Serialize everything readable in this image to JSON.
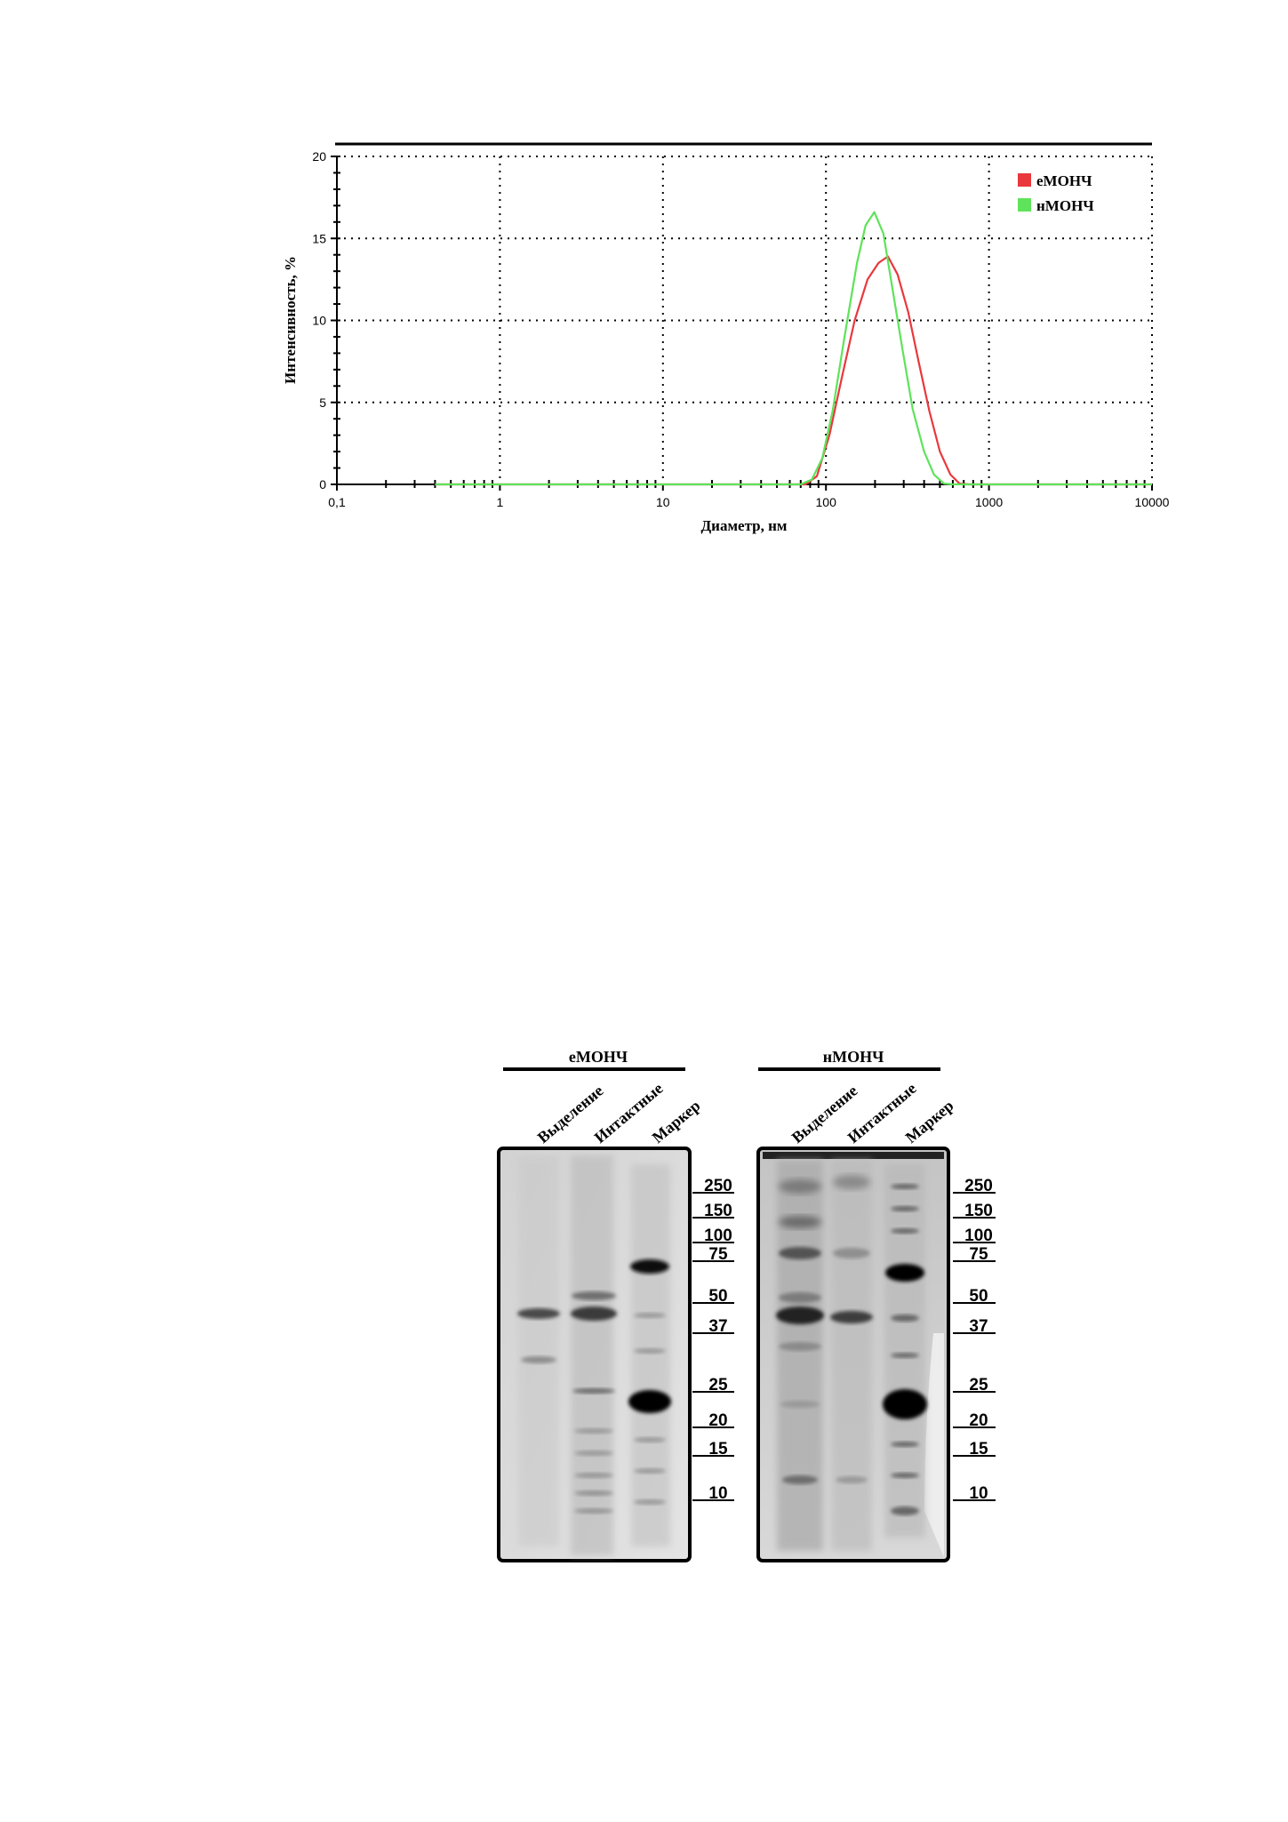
{
  "chart_data": {
    "type": "line",
    "x_scale": "log",
    "xlim": [
      0.1,
      10000
    ],
    "ylim": [
      0,
      20
    ],
    "xlabel": "Диаметр, нм",
    "ylabel": "Интенсивность, %",
    "x_ticks": [
      "0,1",
      "1",
      "10",
      "100",
      "1000",
      "10000"
    ],
    "y_ticks": [
      "0",
      "5",
      "10",
      "15",
      "20"
    ],
    "grid": true,
    "legend_position": "top-right",
    "series": [
      {
        "name": "еМОНЧ",
        "color": "#e8383d",
        "points": [
          [
            0.4,
            0
          ],
          [
            75,
            0
          ],
          [
            88,
            0.5
          ],
          [
            105,
            3.0
          ],
          [
            125,
            6.5
          ],
          [
            150,
            10.0
          ],
          [
            180,
            12.5
          ],
          [
            210,
            13.5
          ],
          [
            240,
            13.9
          ],
          [
            275,
            12.8
          ],
          [
            320,
            10.5
          ],
          [
            370,
            7.5
          ],
          [
            430,
            4.5
          ],
          [
            500,
            2.0
          ],
          [
            580,
            0.6
          ],
          [
            660,
            0.05
          ],
          [
            750,
            0
          ],
          [
            10000,
            0
          ]
        ]
      },
      {
        "name": "нМОНЧ",
        "color": "#5ee35a",
        "points": [
          [
            0.4,
            0
          ],
          [
            70,
            0
          ],
          [
            82,
            0.3
          ],
          [
            95,
            1.6
          ],
          [
            110,
            4.5
          ],
          [
            130,
            9.0
          ],
          [
            155,
            13.5
          ],
          [
            175,
            15.8
          ],
          [
            198,
            16.6
          ],
          [
            225,
            15.3
          ],
          [
            255,
            12.0
          ],
          [
            295,
            8.2
          ],
          [
            340,
            4.6
          ],
          [
            400,
            2.0
          ],
          [
            460,
            0.6
          ],
          [
            530,
            0.05
          ],
          [
            600,
            0
          ],
          [
            10000,
            0
          ]
        ]
      }
    ]
  },
  "gels": [
    {
      "title": "еМОНЧ",
      "lanes": [
        "Выделение",
        "Интактные",
        "Маркер"
      ]
    },
    {
      "title": "нМОНЧ",
      "lanes": [
        "Выделение",
        "Интактные",
        "Маркер"
      ]
    }
  ],
  "marker_kda": [
    "250",
    "150",
    "100",
    "75",
    "50",
    "37",
    "25",
    "20",
    "15",
    "10"
  ]
}
